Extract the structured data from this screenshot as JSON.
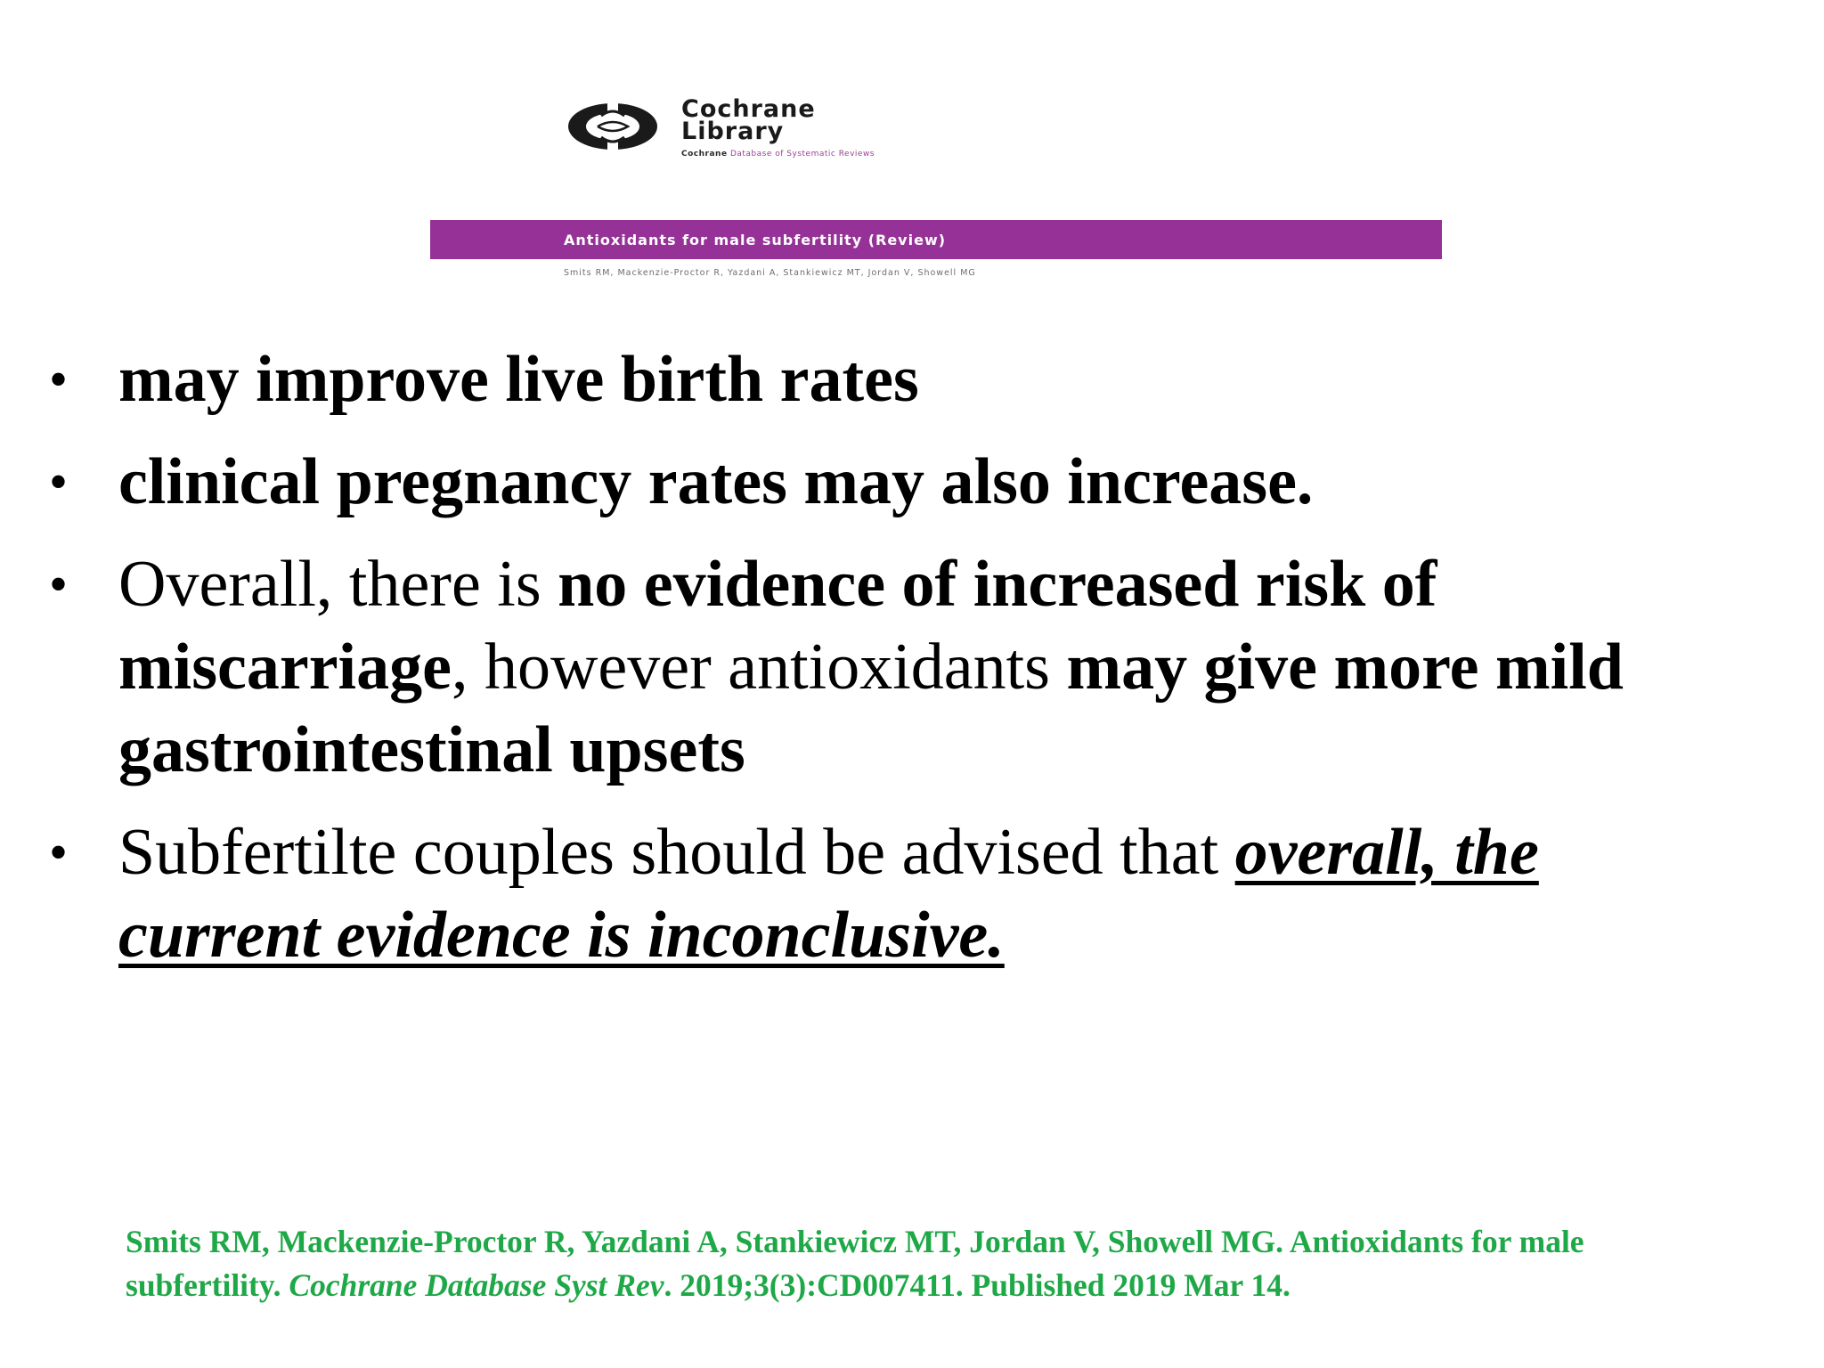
{
  "header": {
    "logo_name_line1": "Cochrane",
    "logo_name_line2": "Library",
    "logo_sub_bold": "Cochrane",
    "logo_sub_rest": "Database of Systematic Reviews",
    "review_title": "Antioxidants for male subfertility (Review)",
    "review_authors": "Smits RM, Mackenzie-Proctor R, Yazdani A, Stankiewicz MT, Jordan V, Showell MG",
    "bar_color": "#963297"
  },
  "bullets": {
    "symbol": "•",
    "item1": "may improve live birth rates",
    "item2": "clinical pregnancy rates may also increase.",
    "item3_a": "Overall, there is ",
    "item3_b": "no evidence of increased risk of miscarriage",
    "item3_c": ", however antioxidants ",
    "item3_d": "may give more mild gastrointestinal upsets",
    "item4_a": "Subfertilte couples should be advised that ",
    "item4_b": "overall, the current evidence is inconclusive."
  },
  "citation": {
    "text_a": "Smits RM, Mackenzie-Proctor R, Yazdani A, Stankiewicz MT, Jordan V, Showell MG. Antioxidants for male subfertility. ",
    "journal": "Cochrane Database Syst Rev",
    "text_b": ". 2019;3(3):CD007411. Published 2019 Mar 14.",
    "color": "#1fa847"
  }
}
